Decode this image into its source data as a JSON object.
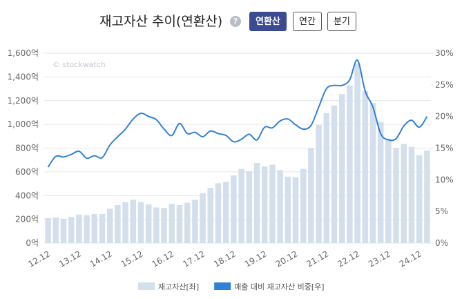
{
  "controls": {
    "help": "?",
    "buttons": [
      "연환산",
      "연간",
      "분기"
    ]
  },
  "chart_data": {
    "type": "bar_line",
    "title": "재고자산 추이(연환산)",
    "watermark": "© stockwatch",
    "categories": [
      "12.12",
      null,
      null,
      null,
      "13.12",
      null,
      null,
      null,
      "14.12",
      null,
      null,
      null,
      "15.12",
      null,
      null,
      null,
      "16.12",
      null,
      null,
      null,
      "17.12",
      null,
      null,
      null,
      "18.12",
      null,
      null,
      null,
      "19.12",
      null,
      null,
      null,
      "20.12",
      null,
      null,
      null,
      "21.12",
      null,
      null,
      null,
      "22.12",
      null,
      null,
      null,
      "23.12",
      null,
      null,
      null,
      "24.12",
      null
    ],
    "series": [
      {
        "name": "재고자산[좌]",
        "color": "#d3dfec",
        "axis": "y",
        "values": [
          210,
          215,
          205,
          220,
          240,
          235,
          245,
          245,
          290,
          320,
          345,
          365,
          345,
          325,
          300,
          295,
          330,
          320,
          340,
          365,
          420,
          465,
          505,
          515,
          570,
          625,
          605,
          675,
          645,
          660,
          615,
          560,
          555,
          625,
          800,
          995,
          1095,
          1160,
          1255,
          1330,
          1510,
          1280,
          1180,
          1020,
          880,
          800,
          835,
          810,
          740,
          780
        ]
      },
      {
        "name": "매출 대비 재고자산 비중[우]",
        "color": "#2f80d8",
        "axis": "y2",
        "values": [
          12.0,
          13.7,
          13.6,
          14.0,
          14.5,
          13.4,
          13.8,
          13.5,
          15.5,
          16.8,
          18.0,
          19.6,
          20.5,
          20.0,
          19.5,
          18.0,
          17.0,
          18.9,
          17.3,
          17.5,
          16.8,
          17.7,
          17.3,
          17.0,
          16.0,
          16.4,
          17.2,
          16.3,
          18.3,
          18.2,
          19.3,
          19.6,
          18.7,
          18.0,
          18.6,
          21.5,
          24.4,
          24.9,
          24.9,
          25.8,
          28.9,
          24.0,
          21.5,
          17.3,
          16.3,
          16.5,
          18.5,
          19.4,
          18.3,
          20.0
        ]
      }
    ],
    "ylim": [
      0,
      1600
    ],
    "yticks": [
      {
        "value": 0,
        "label": "0억"
      },
      {
        "value": 200,
        "label": "200억"
      },
      {
        "value": 400,
        "label": "400억"
      },
      {
        "value": 600,
        "label": "600억"
      },
      {
        "value": 800,
        "label": "800억"
      },
      {
        "value": 1000,
        "label": "1,000억"
      },
      {
        "value": 1200,
        "label": "1,200억"
      },
      {
        "value": 1400,
        "label": "1,400억"
      },
      {
        "value": 1600,
        "label": "1,600억"
      }
    ],
    "y2lim": [
      0,
      30
    ],
    "y2ticks": [
      {
        "value": 0,
        "label": "0%"
      },
      {
        "value": 5,
        "label": "5%"
      },
      {
        "value": 10,
        "label": "10%"
      },
      {
        "value": 15,
        "label": "15%"
      },
      {
        "value": 20,
        "label": "20%"
      },
      {
        "value": 25,
        "label": "25%"
      },
      {
        "value": 30,
        "label": "30%"
      }
    ],
    "grid": true,
    "legend": "bottom"
  }
}
